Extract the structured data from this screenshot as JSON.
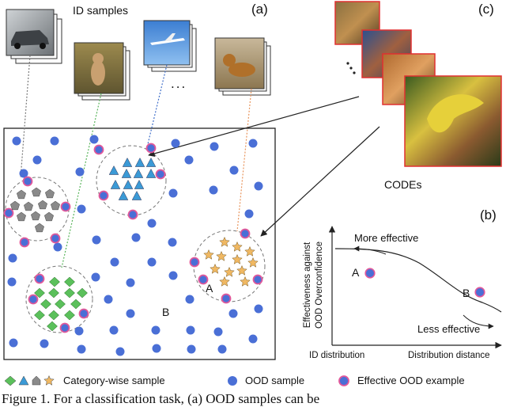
{
  "figure": {
    "panel_a": "(a)",
    "panel_b": "(b)",
    "panel_c": "(c)",
    "id_samples_label": "ID samples",
    "ellipsis": "...",
    "codes_label": "CODEs",
    "point_a": "A",
    "point_b": "B"
  },
  "chart_b": {
    "ylabel_line1": "Effectiveness against",
    "ylabel_line2": "OOD Overconfidence",
    "more_effective": "More effective",
    "less_effective": "Less effective",
    "x_left": "ID distribution",
    "x_right": "Distribution distance",
    "point_a": "A",
    "point_b": "B"
  },
  "legend": {
    "category_wise": "Category-wise sample",
    "ood_sample": "OOD sample",
    "effective_ood": "Effective OOD example"
  },
  "caption": {
    "text": "Figure 1.   For a classification task, (a) OOD samples can be"
  },
  "colors": {
    "ood_blue": "#4a6fd6",
    "effective_ring": "#e2589a",
    "gray": "#8a8a8a",
    "cyan": "#3b9ad6",
    "green": "#5bc05b",
    "orange": "#f0b862",
    "green_line": "#58b45a",
    "blue_line": "#3f6ec9",
    "orange_line": "#e8935a"
  }
}
